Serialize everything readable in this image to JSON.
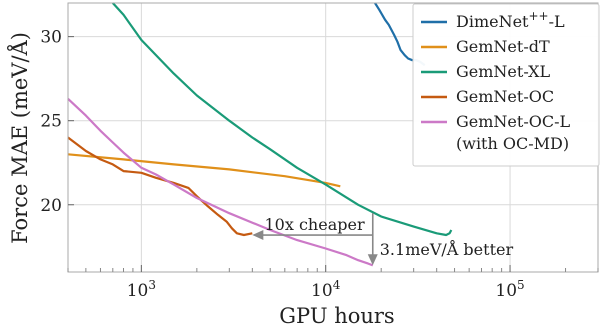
{
  "chart_data": {
    "type": "line",
    "xlabel": "GPU hours",
    "ylabel": "Force MAE (meV/Å)",
    "x_scale": "log",
    "xlim": [
      400,
      300000
    ],
    "ylim": [
      16,
      32
    ],
    "x_ticks": [
      {
        "value": 1000,
        "base": "10",
        "exp": "3"
      },
      {
        "value": 10000,
        "base": "10",
        "exp": "4"
      },
      {
        "value": 100000,
        "base": "10",
        "exp": "5"
      }
    ],
    "y_ticks": [
      20,
      25,
      30
    ],
    "grid": true,
    "legend_position": "top-right",
    "series": [
      {
        "name_main": "DimeNet",
        "name_sup": "++",
        "name_suffix": "-L",
        "name_line2": "",
        "color": "#1f6fa8",
        "points": [
          [
            18500,
            32.0
          ],
          [
            19500,
            31.6
          ],
          [
            21000,
            31.0
          ],
          [
            22000,
            30.7
          ],
          [
            23500,
            30.1
          ],
          [
            24500,
            29.7
          ],
          [
            25500,
            29.2
          ],
          [
            26800,
            28.9
          ],
          [
            28000,
            28.7
          ],
          [
            29500,
            28.6
          ],
          [
            31000,
            28.6
          ],
          [
            32500,
            28.5
          ],
          [
            34500,
            28.3
          ]
        ]
      },
      {
        "name_main": "GemNet-dT",
        "name_sup": "",
        "name_suffix": "",
        "name_line2": "",
        "color": "#e0901a",
        "points": [
          [
            400,
            23.0
          ],
          [
            800,
            22.7
          ],
          [
            1500,
            22.4
          ],
          [
            3000,
            22.1
          ],
          [
            6000,
            21.7
          ],
          [
            10000,
            21.3
          ],
          [
            12000,
            21.1
          ]
        ]
      },
      {
        "name_main": "GemNet-XL",
        "name_sup": "",
        "name_suffix": "",
        "name_line2": "",
        "color": "#1a9b78",
        "points": [
          [
            700,
            32.0
          ],
          [
            800,
            31.3
          ],
          [
            1000,
            29.8
          ],
          [
            1500,
            27.8
          ],
          [
            2000,
            26.5
          ],
          [
            3000,
            25.0
          ],
          [
            4000,
            24.0
          ],
          [
            5000,
            23.3
          ],
          [
            7000,
            22.2
          ],
          [
            10000,
            21.2
          ],
          [
            15000,
            20.0
          ],
          [
            20000,
            19.3
          ],
          [
            30000,
            18.7
          ],
          [
            40000,
            18.3
          ],
          [
            45000,
            18.2
          ],
          [
            47000,
            18.3
          ],
          [
            48000,
            18.5
          ]
        ]
      },
      {
        "name_main": "GemNet-OC",
        "name_sup": "",
        "name_suffix": "",
        "name_line2": "",
        "color": "#c55a11",
        "points": [
          [
            400,
            24.0
          ],
          [
            500,
            23.2
          ],
          [
            600,
            22.7
          ],
          [
            700,
            22.4
          ],
          [
            800,
            22.0
          ],
          [
            1000,
            21.9
          ],
          [
            1200,
            21.6
          ],
          [
            1500,
            21.3
          ],
          [
            1800,
            21.0
          ],
          [
            2000,
            20.5
          ],
          [
            2300,
            19.9
          ],
          [
            2600,
            19.4
          ],
          [
            2900,
            19.0
          ],
          [
            3100,
            18.6
          ],
          [
            3300,
            18.3
          ],
          [
            3600,
            18.2
          ],
          [
            4000,
            18.3
          ]
        ]
      },
      {
        "name_main": "GemNet-OC-L",
        "name_sup": "",
        "name_suffix": "",
        "name_line2": "(with OC-MD)",
        "color": "#cc79c7",
        "points": [
          [
            400,
            26.3
          ],
          [
            500,
            25.3
          ],
          [
            600,
            24.4
          ],
          [
            700,
            23.7
          ],
          [
            800,
            23.1
          ],
          [
            1000,
            22.2
          ],
          [
            1200,
            21.8
          ],
          [
            1500,
            21.2
          ],
          [
            2000,
            20.4
          ],
          [
            3000,
            19.5
          ],
          [
            5000,
            18.5
          ],
          [
            7000,
            17.9
          ],
          [
            10000,
            17.4
          ],
          [
            13000,
            17.0
          ],
          [
            15000,
            16.7
          ],
          [
            17000,
            16.5
          ],
          [
            18000,
            16.4
          ]
        ]
      }
    ],
    "annotations": {
      "horizontal_label": "10x cheaper",
      "vertical_label": "3.1meV/Å better",
      "h_arrow": {
        "from_x": 18000,
        "to_x": 4000,
        "y": 18.2
      },
      "v_arrow": {
        "x": 18000,
        "from_y": 19.5,
        "to_y": 16.4
      }
    }
  }
}
